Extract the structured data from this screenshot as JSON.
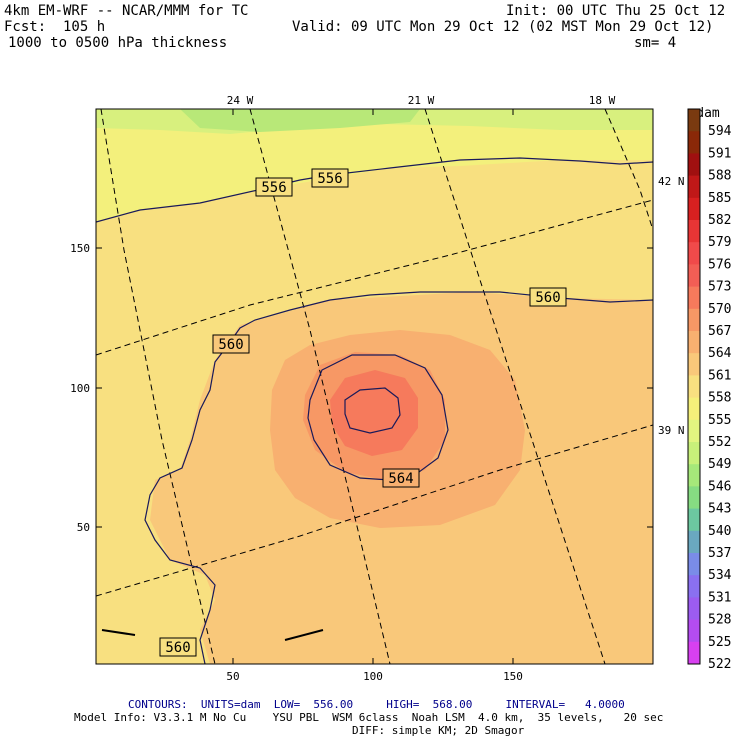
{
  "header": {
    "model": "4km EM-WRF -- NCAR/MMM for TC",
    "init": "Init: 00 UTC Thu 25 Oct 12",
    "fcst": "Fcst:  105 h",
    "valid": "Valid: 09 UTC Mon 29 Oct 12 (02 MST Mon 29 Oct 12)",
    "field": "1000 to 0500 hPa thickness",
    "smoothing": "sm= 4"
  },
  "map": {
    "lon_labels": [
      "24 W",
      "21 W",
      "18 W"
    ],
    "lat_labels": [
      "42 N",
      "39 N"
    ],
    "y_ticks": [
      "150",
      "100",
      "50"
    ],
    "x_ticks": [
      "50",
      "100",
      "150"
    ],
    "contour_labels": [
      "556",
      "556",
      "560",
      "560",
      "560",
      "564"
    ]
  },
  "colorbar": {
    "unit": "dam",
    "levels": [
      "594",
      "591",
      "588",
      "585",
      "582",
      "579",
      "576",
      "573",
      "570",
      "567",
      "564",
      "561",
      "558",
      "555",
      "552",
      "549",
      "546",
      "543",
      "540",
      "537",
      "534",
      "531",
      "528",
      "525",
      "522"
    ],
    "tick_labels": [
      "594",
      "591",
      "588",
      "585",
      "582",
      "579",
      "576",
      "573",
      "570",
      "567",
      "564",
      "561",
      "558",
      "555",
      "552",
      "549",
      "546",
      "543",
      "540",
      "537",
      "534",
      "531",
      "528",
      "525",
      "522"
    ],
    "colors": [
      "#7a3a10",
      "#8a2808",
      "#a01010",
      "#c01818",
      "#d82020",
      "#e83535",
      "#f04a4a",
      "#f25e55",
      "#f67a5c",
      "#f79865",
      "#f8b070",
      "#f9c87a",
      "#f8e080",
      "#f5f07a",
      "#e2f580",
      "#c8f07a",
      "#a6e87a",
      "#86dc82",
      "#6cc8a0",
      "#6aa8c0",
      "#7a8ce8",
      "#8a70f0",
      "#9c5cf0",
      "#b44cf0",
      "#d840f0"
    ]
  },
  "footer": {
    "contours": "CONTOURS:  UNITS=dam  LOW=  556.00     HIGH=  568.00     INTERVAL=   4.0000",
    "model_info": "Model Info: V3.3.1 M No Cu    YSU PBL  WSM 6class  Noah LSM  4.0 km,  35 levels,   20 sec",
    "diff": "DIFF: simple KM; 2D Smagor"
  }
}
